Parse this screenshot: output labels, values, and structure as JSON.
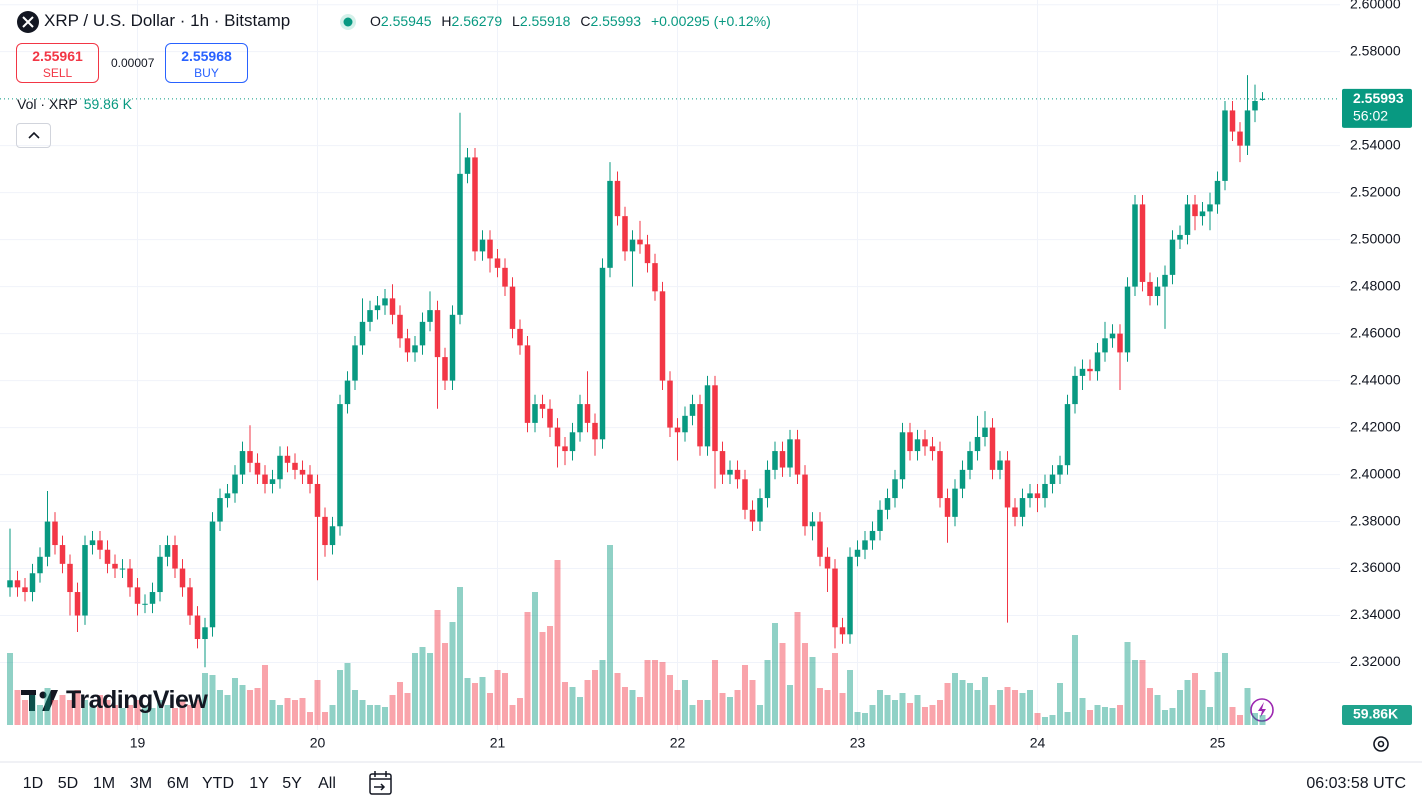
{
  "header": {
    "title": "XRP / U.S. Dollar · 1h · Bitstamp",
    "o_label": "O",
    "h_label": "H",
    "l_label": "L",
    "c_label": "C",
    "change": "+0.00295 (+0.12%)",
    "sell_price": 2.55961,
    "sell_label": "SELL",
    "spread": 7e-05,
    "buy_price": 2.55968,
    "buy_label": "BUY"
  },
  "logo": "TradingView",
  "toolbar": {
    "ranges": [
      "1D",
      "5D",
      "1M",
      "3M",
      "6M",
      "YTD",
      "1Y",
      "5Y",
      "All"
    ],
    "clock": "06:03:58 UTC"
  },
  "chart_data": {
    "type": "candlestick",
    "up_color": "#089981",
    "down_color": "#f23645",
    "grid": true,
    "volume_title": "Vol · XRP",
    "volume_label": "59.86 K",
    "volume_axis_label": "59.86K",
    "countdown": "56:02",
    "ylim": [
      2.29,
      2.602
    ],
    "yticks": [
      {
        "value": 2.32,
        "label": "2.32000"
      },
      {
        "value": 2.34,
        "label": "2.34000"
      },
      {
        "value": 2.36,
        "label": "2.36000"
      },
      {
        "value": 2.38,
        "label": "2.38000"
      },
      {
        "value": 2.4,
        "label": "2.40000"
      },
      {
        "value": 2.42,
        "label": "2.42000"
      },
      {
        "value": 2.44,
        "label": "2.44000"
      },
      {
        "value": 2.46,
        "label": "2.46000"
      },
      {
        "value": 2.48,
        "label": "2.48000"
      },
      {
        "value": 2.5,
        "label": "2.50000"
      },
      {
        "value": 2.52,
        "label": "2.52000"
      },
      {
        "value": 2.54,
        "label": "2.54000"
      },
      {
        "value": 2.58,
        "label": "2.58000"
      },
      {
        "value": 2.6,
        "label": "2.60000"
      }
    ],
    "xticks": [
      {
        "value": 17,
        "label": "19"
      },
      {
        "value": 41,
        "label": "20"
      },
      {
        "value": 65,
        "label": "21"
      },
      {
        "value": 89,
        "label": "22"
      },
      {
        "value": 113,
        "label": "23"
      },
      {
        "value": 137,
        "label": "24"
      },
      {
        "value": 161,
        "label": "25"
      }
    ],
    "open": [
      2.352,
      2.355,
      2.352,
      2.35,
      2.358,
      2.365,
      2.38,
      2.37,
      2.362,
      2.35,
      2.34,
      2.37,
      2.372,
      2.368,
      2.362,
      2.36,
      2.36,
      2.352,
      2.345,
      2.345,
      2.35,
      2.365,
      2.37,
      2.36,
      2.352,
      2.34,
      2.33,
      2.335,
      2.38,
      2.39,
      2.392,
      2.4,
      2.41,
      2.405,
      2.4,
      2.396,
      2.398,
      2.408,
      2.405,
      2.402,
      2.4,
      2.396,
      2.382,
      2.37,
      2.378,
      2.43,
      2.44,
      2.455,
      2.465,
      2.47,
      2.472,
      2.475,
      2.468,
      2.458,
      2.452,
      2.455,
      2.465,
      2.47,
      2.45,
      2.44,
      2.468,
      2.528,
      2.535,
      2.495,
      2.5,
      2.492,
      2.488,
      2.48,
      2.462,
      2.455,
      2.422,
      2.43,
      2.428,
      2.42,
      2.412,
      2.41,
      2.418,
      2.43,
      2.422,
      2.415,
      2.488,
      2.525,
      2.51,
      2.495,
      2.5,
      2.498,
      2.49,
      2.478,
      2.44,
      2.42,
      2.418,
      2.425,
      2.43,
      2.412,
      2.438,
      2.41,
      2.4,
      2.402,
      2.398,
      2.385,
      2.38,
      2.39,
      2.402,
      2.41,
      2.403,
      2.415,
      2.4,
      2.378,
      2.38,
      2.365,
      2.36,
      2.335,
      2.332,
      2.365,
      2.368,
      2.372,
      2.376,
      2.385,
      2.39,
      2.398,
      2.418,
      2.41,
      2.415,
      2.412,
      2.41,
      2.39,
      2.382,
      2.394,
      2.402,
      2.41,
      2.416,
      2.42,
      2.402,
      2.406,
      2.386,
      2.382,
      2.39,
      2.392,
      2.39,
      2.396,
      2.4,
      2.404,
      2.43,
      2.442,
      2.445,
      2.444,
      2.452,
      2.458,
      2.46,
      2.452,
      2.48,
      2.515,
      2.482,
      2.476,
      2.48,
      2.485,
      2.5,
      2.502,
      2.515,
      2.51,
      2.512,
      2.515,
      2.525,
      2.555,
      2.546,
      2.54,
      2.555,
      2.55945
    ],
    "high": [
      2.377,
      2.359,
      2.356,
      2.362,
      2.369,
      2.393,
      2.384,
      2.374,
      2.366,
      2.354,
      2.374,
      2.376,
      2.376,
      2.372,
      2.366,
      2.364,
      2.364,
      2.356,
      2.349,
      2.354,
      2.37,
      2.374,
      2.374,
      2.364,
      2.356,
      2.344,
      2.339,
      2.384,
      2.394,
      2.396,
      2.404,
      2.414,
      2.421,
      2.409,
      2.404,
      2.402,
      2.412,
      2.412,
      2.409,
      2.406,
      2.404,
      2.4,
      2.386,
      2.382,
      2.434,
      2.444,
      2.459,
      2.475,
      2.474,
      2.476,
      2.479,
      2.481,
      2.472,
      2.462,
      2.459,
      2.469,
      2.478,
      2.474,
      2.454,
      2.472,
      2.554,
      2.539,
      2.539,
      2.504,
      2.504,
      2.496,
      2.492,
      2.484,
      2.466,
      2.459,
      2.434,
      2.434,
      2.432,
      2.424,
      2.416,
      2.422,
      2.434,
      2.444,
      2.426,
      2.492,
      2.533,
      2.529,
      2.514,
      2.504,
      2.508,
      2.502,
      2.494,
      2.482,
      2.444,
      2.424,
      2.429,
      2.434,
      2.434,
      2.442,
      2.442,
      2.414,
      2.406,
      2.406,
      2.402,
      2.389,
      2.394,
      2.406,
      2.414,
      2.414,
      2.419,
      2.419,
      2.404,
      2.384,
      2.384,
      2.369,
      2.364,
      2.339,
      2.369,
      2.372,
      2.376,
      2.38,
      2.389,
      2.394,
      2.402,
      2.422,
      2.422,
      2.419,
      2.419,
      2.416,
      2.414,
      2.394,
      2.398,
      2.406,
      2.414,
      2.425,
      2.427,
      2.424,
      2.41,
      2.41,
      2.39,
      2.394,
      2.396,
      2.396,
      2.4,
      2.404,
      2.408,
      2.434,
      2.446,
      2.449,
      2.449,
      2.456,
      2.465,
      2.464,
      2.464,
      2.484,
      2.519,
      2.519,
      2.486,
      2.484,
      2.489,
      2.504,
      2.506,
      2.519,
      2.519,
      2.516,
      2.52,
      2.529,
      2.559,
      2.559,
      2.55,
      2.57,
      2.566,
      2.56279
    ],
    "low": [
      2.348,
      2.348,
      2.346,
      2.346,
      2.354,
      2.361,
      2.366,
      2.358,
      2.34,
      2.333,
      2.336,
      2.366,
      2.364,
      2.358,
      2.356,
      2.356,
      2.348,
      2.34,
      2.341,
      2.341,
      2.346,
      2.361,
      2.356,
      2.348,
      2.336,
      2.326,
      2.318,
      2.331,
      2.376,
      2.386,
      2.388,
      2.396,
      2.401,
      2.396,
      2.392,
      2.392,
      2.394,
      2.401,
      2.398,
      2.396,
      2.392,
      2.355,
      2.365,
      2.366,
      2.374,
      2.426,
      2.436,
      2.451,
      2.461,
      2.466,
      2.468,
      2.464,
      2.454,
      2.448,
      2.448,
      2.451,
      2.461,
      2.428,
      2.436,
      2.436,
      2.464,
      2.524,
      2.491,
      2.491,
      2.486,
      2.484,
      2.476,
      2.458,
      2.451,
      2.418,
      2.418,
      2.424,
      2.416,
      2.403,
      2.404,
      2.406,
      2.414,
      2.418,
      2.408,
      2.411,
      2.484,
      2.506,
      2.491,
      2.48,
      2.494,
      2.486,
      2.474,
      2.436,
      2.416,
      2.406,
      2.414,
      2.421,
      2.408,
      2.408,
      2.394,
      2.396,
      2.396,
      2.394,
      2.381,
      2.376,
      2.376,
      2.386,
      2.398,
      2.399,
      2.399,
      2.396,
      2.374,
      2.372,
      2.361,
      2.35,
      2.326,
      2.328,
      2.328,
      2.361,
      2.364,
      2.368,
      2.372,
      2.381,
      2.386,
      2.394,
      2.406,
      2.406,
      2.408,
      2.406,
      2.386,
      2.371,
      2.378,
      2.39,
      2.398,
      2.406,
      2.412,
      2.398,
      2.398,
      2.337,
      2.378,
      2.378,
      2.386,
      2.384,
      2.386,
      2.392,
      2.396,
      2.4,
      2.426,
      2.436,
      2.44,
      2.44,
      2.448,
      2.454,
      2.436,
      2.448,
      2.476,
      2.478,
      2.472,
      2.472,
      2.462,
      2.481,
      2.496,
      2.498,
      2.504,
      2.506,
      2.504,
      2.511,
      2.521,
      2.542,
      2.533,
      2.536,
      2.55,
      2.55918
    ],
    "close": [
      2.355,
      2.352,
      2.35,
      2.358,
      2.365,
      2.38,
      2.37,
      2.362,
      2.35,
      2.34,
      2.37,
      2.372,
      2.368,
      2.362,
      2.36,
      2.36,
      2.352,
      2.345,
      2.345,
      2.35,
      2.365,
      2.37,
      2.36,
      2.352,
      2.34,
      2.33,
      2.335,
      2.38,
      2.39,
      2.392,
      2.4,
      2.41,
      2.405,
      2.4,
      2.396,
      2.398,
      2.408,
      2.405,
      2.402,
      2.4,
      2.396,
      2.382,
      2.37,
      2.378,
      2.43,
      2.44,
      2.455,
      2.465,
      2.47,
      2.472,
      2.475,
      2.468,
      2.458,
      2.452,
      2.455,
      2.465,
      2.47,
      2.45,
      2.44,
      2.468,
      2.528,
      2.535,
      2.495,
      2.5,
      2.492,
      2.488,
      2.48,
      2.462,
      2.455,
      2.422,
      2.43,
      2.428,
      2.42,
      2.412,
      2.41,
      2.418,
      2.43,
      2.422,
      2.415,
      2.488,
      2.525,
      2.51,
      2.495,
      2.5,
      2.498,
      2.49,
      2.478,
      2.44,
      2.42,
      2.418,
      2.425,
      2.43,
      2.412,
      2.438,
      2.41,
      2.4,
      2.402,
      2.398,
      2.385,
      2.38,
      2.39,
      2.402,
      2.41,
      2.403,
      2.415,
      2.4,
      2.378,
      2.38,
      2.365,
      2.36,
      2.335,
      2.332,
      2.365,
      2.368,
      2.372,
      2.376,
      2.385,
      2.39,
      2.398,
      2.418,
      2.41,
      2.415,
      2.412,
      2.41,
      2.39,
      2.382,
      2.394,
      2.402,
      2.41,
      2.416,
      2.42,
      2.402,
      2.406,
      2.386,
      2.382,
      2.39,
      2.392,
      2.39,
      2.396,
      2.4,
      2.404,
      2.43,
      2.442,
      2.445,
      2.444,
      2.452,
      2.458,
      2.46,
      2.452,
      2.48,
      2.515,
      2.482,
      2.476,
      2.48,
      2.485,
      2.5,
      2.502,
      2.515,
      2.51,
      2.512,
      2.515,
      2.525,
      2.555,
      2.546,
      2.54,
      2.555,
      2.559,
      2.55993
    ],
    "volume": [
      432,
      210,
      150,
      180,
      120,
      222,
      150,
      180,
      150,
      210,
      150,
      120,
      180,
      150,
      120,
      102,
      120,
      150,
      120,
      102,
      150,
      120,
      102,
      150,
      120,
      150,
      312,
      300,
      210,
      180,
      282,
      240,
      210,
      222,
      360,
      150,
      120,
      162,
      150,
      162,
      78,
      270,
      78,
      120,
      330,
      372,
      210,
      150,
      120,
      120,
      108,
      180,
      258,
      192,
      432,
      468,
      432,
      690,
      492,
      618,
      828,
      282,
      252,
      288,
      192,
      330,
      312,
      120,
      162,
      678,
      798,
      558,
      594,
      990,
      258,
      228,
      168,
      270,
      330,
      390,
      1080,
      312,
      228,
      210,
      168,
      390,
      390,
      378,
      300,
      210,
      270,
      120,
      150,
      150,
      390,
      192,
      168,
      210,
      360,
      270,
      120,
      390,
      612,
      492,
      240,
      678,
      492,
      408,
      222,
      210,
      432,
      192,
      330,
      78,
      72,
      120,
      210,
      180,
      150,
      192,
      132,
      180,
      108,
      120,
      150,
      252,
      312,
      270,
      252,
      210,
      288,
      120,
      210,
      228,
      210,
      192,
      210,
      72,
      48,
      60,
      252,
      78,
      540,
      162,
      90,
      120,
      108,
      102,
      120,
      498,
      390,
      390,
      222,
      180,
      90,
      102,
      210,
      270,
      312,
      210,
      108,
      318,
      432,
      108,
      60,
      222,
      72,
      59.86
    ]
  }
}
